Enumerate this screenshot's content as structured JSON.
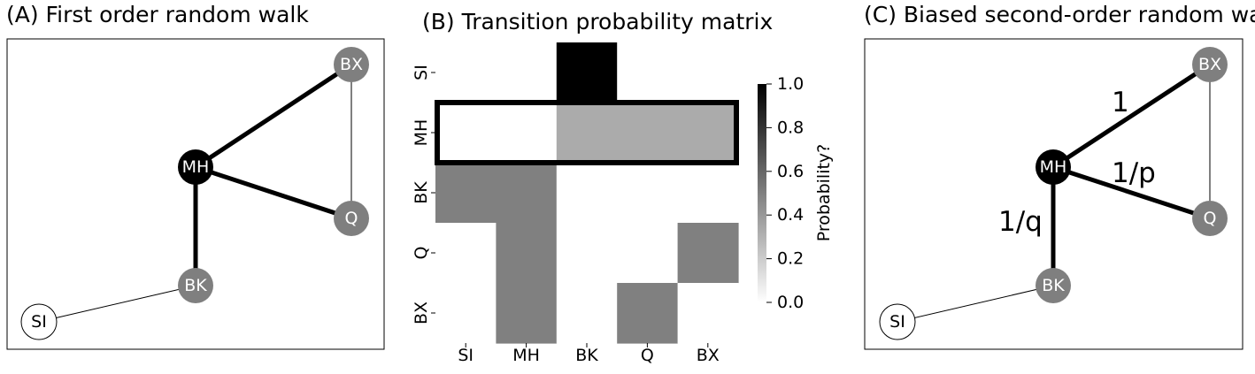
{
  "panels": {
    "a": {
      "title": "(A) First order random walk",
      "nodes": {
        "bx": {
          "label": "BX",
          "fill": "#7f7f7f",
          "text_color": "#ffffff"
        },
        "mh": {
          "label": "MH",
          "fill": "#000000",
          "text_color": "#ffffff"
        },
        "q": {
          "label": "Q",
          "fill": "#7f7f7f",
          "text_color": "#ffffff"
        },
        "bk": {
          "label": "BK",
          "fill": "#7f7f7f",
          "text_color": "#ffffff"
        },
        "si": {
          "label": "SI",
          "fill": "#ffffff",
          "text_color": "#000000"
        }
      }
    },
    "b": {
      "title": "(B) Transition probability matrix",
      "colorbar_label": "Probability?"
    },
    "c": {
      "title": "(C) Biased second-order random walk",
      "nodes": {
        "bx": {
          "label": "BX",
          "fill": "#7f7f7f",
          "text_color": "#ffffff"
        },
        "mh": {
          "label": "MH",
          "fill": "#000000",
          "text_color": "#ffffff"
        },
        "q": {
          "label": "Q",
          "fill": "#7f7f7f",
          "text_color": "#ffffff"
        },
        "bk": {
          "label": "BK",
          "fill": "#7f7f7f",
          "text_color": "#ffffff"
        },
        "si": {
          "label": "SI",
          "fill": "#ffffff",
          "text_color": "#000000"
        }
      },
      "edge_labels": {
        "mh_bx": "1",
        "mh_q": "1/p",
        "mh_bk": "1/q"
      }
    }
  },
  "chart_data": {
    "type": "heatmap",
    "title": "(B) Transition probability matrix",
    "rows": [
      "SI",
      "MH",
      "BK",
      "Q",
      "BX"
    ],
    "cols": [
      "SI",
      "MH",
      "BK",
      "Q",
      "BX"
    ],
    "values": [
      [
        0,
        0,
        1.0,
        0,
        0
      ],
      [
        0,
        0,
        0.33,
        0.33,
        0.33
      ],
      [
        0.5,
        0.5,
        0,
        0,
        0
      ],
      [
        0,
        0.5,
        0,
        0,
        0.5
      ],
      [
        0,
        0.5,
        0,
        0.5,
        0
      ]
    ],
    "highlighted_row": "MH",
    "colorbar": {
      "label": "Probability?",
      "range": [
        0.0,
        1.0
      ],
      "ticks": [
        "0.0",
        "0.2",
        "0.4",
        "0.6",
        "0.8",
        "1.0"
      ],
      "colormap": "Greys"
    }
  }
}
